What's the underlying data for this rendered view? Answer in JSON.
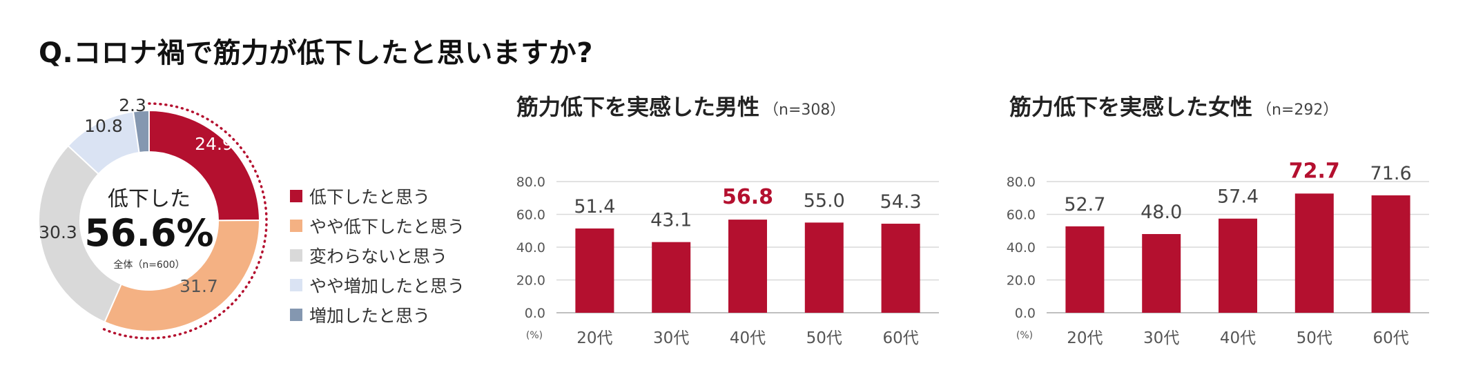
{
  "question": "Q.コロナ禍で筋力が低下したと思いますか?",
  "colors": {
    "accent": "#B4102F",
    "peach": "#F4B183",
    "gray": "#D9D9D9",
    "lavender": "#DAE3F3",
    "slate": "#8497B0"
  },
  "chart_data": [
    {
      "type": "pie",
      "center_label": "低下した",
      "center_value": "56.6%",
      "center_note": "全体（n=600）",
      "slices": [
        {
          "label": "低下したと思う",
          "value": 24.9,
          "color": "#B4102F"
        },
        {
          "label": "やや低下したと思う",
          "value": 31.7,
          "color": "#F4B183"
        },
        {
          "label": "変わらないと思う",
          "value": 30.3,
          "color": "#D9D9D9"
        },
        {
          "label": "やや増加したと思う",
          "value": 10.8,
          "color": "#DAE3F3"
        },
        {
          "label": "増加したと思う",
          "value": 2.3,
          "color": "#8497B0"
        }
      ],
      "slice_labels": [
        "24.9",
        "31.7",
        "30.3",
        "10.8",
        "2.3"
      ]
    },
    {
      "type": "bar",
      "title": "筋力低下を実感した男性",
      "subtitle": "（n=308）",
      "categories": [
        "20代",
        "30代",
        "40代",
        "50代",
        "60代"
      ],
      "values": [
        51.4,
        43.1,
        56.8,
        55.0,
        54.3
      ],
      "value_labels": [
        "51.4",
        "43.1",
        "56.8",
        "55.0",
        "54.3"
      ],
      "highlight_index": 2,
      "ylim": [
        0,
        80
      ],
      "yticks": [
        "0.0",
        "20.0",
        "40.0",
        "60.0",
        "80.0"
      ],
      "yunit": "(%)",
      "grid": true
    },
    {
      "type": "bar",
      "title": "筋力低下を実感した女性",
      "subtitle": "（n=292）",
      "categories": [
        "20代",
        "30代",
        "40代",
        "50代",
        "60代"
      ],
      "values": [
        52.7,
        48.0,
        57.4,
        72.7,
        71.6
      ],
      "value_labels": [
        "52.7",
        "48.0",
        "57.4",
        "72.7",
        "71.6"
      ],
      "highlight_index": 3,
      "ylim": [
        0,
        80
      ],
      "yticks": [
        "0.0",
        "20.0",
        "40.0",
        "60.0",
        "80.0"
      ],
      "yunit": "(%)",
      "grid": true
    }
  ]
}
